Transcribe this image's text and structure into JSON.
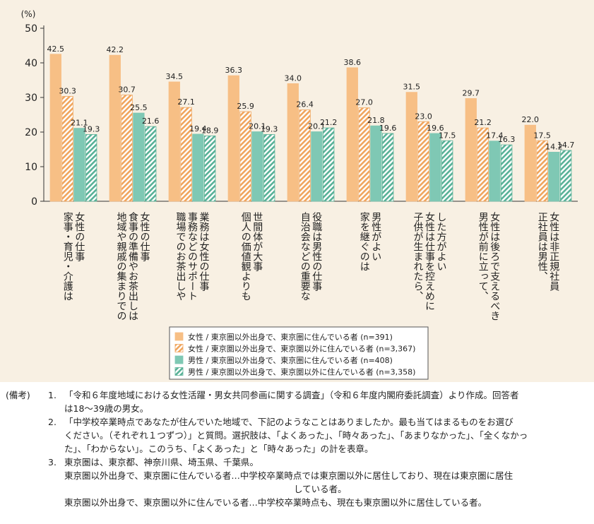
{
  "chart_data": {
    "type": "bar",
    "ylabel": "(%)",
    "ylim": [
      0,
      50
    ],
    "yticks": [
      0,
      10,
      20,
      30,
      40,
      50
    ],
    "categories": [
      [
        "女性の仕事",
        "家事・育児・介護は"
      ],
      [
        "女性の仕事",
        "食事の準備やお茶出しは",
        "地域や親戚の集まりでの"
      ],
      [
        "業務は女性の仕事",
        "事務などのサポート",
        "職場でのお茶出しや"
      ],
      [
        "世間体が大事",
        "個人の価値観よりも"
      ],
      [
        "役職は男性の仕事",
        "自治会などの重要な"
      ],
      [
        "男性がよい",
        "家を継ぐのは"
      ],
      [
        "した方がよい",
        "女性は仕事を控えめに",
        "子供が生まれたら、"
      ],
      [
        "女性は後ろで支えるべき",
        "男性が前に立って、"
      ],
      [
        "女性は非正規社員",
        "正社員は男性、"
      ]
    ],
    "series": [
      {
        "name": "女性 / 東京圏以外出身で、東京圏に住んでいる者 (n=391)",
        "values": [
          42.5,
          42.2,
          34.5,
          36.3,
          34.0,
          38.6,
          31.5,
          29.7,
          22.0
        ],
        "color": "#f7bf85",
        "pattern": "solid"
      },
      {
        "name": "女性 / 東京圏以外出身で、東京圏以外に住んでいる者 (n=3,367)",
        "values": [
          30.3,
          30.7,
          27.1,
          25.9,
          26.4,
          27.0,
          23.0,
          21.2,
          17.5
        ],
        "color": "#f0a55d",
        "pattern": "hatch"
      },
      {
        "name": "男性 / 東京圏以外出身で、東京圏に住んでいる者 (n=408)",
        "values": [
          21.1,
          25.5,
          19.4,
          20.1,
          20.1,
          21.8,
          19.6,
          17.4,
          14.2
        ],
        "color": "#7fc8b4",
        "pattern": "solid"
      },
      {
        "name": "男性 / 東京圏以外出身で、東京圏以外に住んでいる者 (n=3,358)",
        "values": [
          19.3,
          21.6,
          18.9,
          19.3,
          21.2,
          19.6,
          17.5,
          16.3,
          14.7
        ],
        "color": "#58b197",
        "pattern": "hatch"
      }
    ],
    "legend_placement": "bottom-center",
    "grid": false
  },
  "notes": {
    "label": "(備考)",
    "items": [
      {
        "num": "1.",
        "lines": [
          "「令和６年度地域における女性活躍・男女共同参画に関する調査」（令和６年度内閣府委託調査）より作成。回答者",
          "は18～39歳の男女。"
        ]
      },
      {
        "num": "2.",
        "lines": [
          "「中学校卒業時点であなたが住んでいた地域で、下記のようなことはありましたか。最も当てはまるものをお選び",
          "ください。（それぞれ１つずつ）」と質問。選択肢は、「よくあった」、「時々あった」、「あまりなかった」、「全くなかっ",
          "た」、「わからない」。このうち、「よくあった」と「時々あった」の計を表章。"
        ]
      },
      {
        "num": "3.",
        "lines": [
          "東京圏は、東京都、神奈川県、埼玉県、千葉県。"
        ]
      }
    ],
    "definitions": [
      [
        "東京圏以外出身で、東京圏に住んでいる者…中学校卒業時点では東京圏以外に居住しており、現在は東京圏に居住",
        "している者。"
      ],
      [
        "東京圏以外出身で、東京圏以外に住んでいる者…中学校卒業時点も、現在も東京圏以外に居住している者。"
      ]
    ]
  }
}
